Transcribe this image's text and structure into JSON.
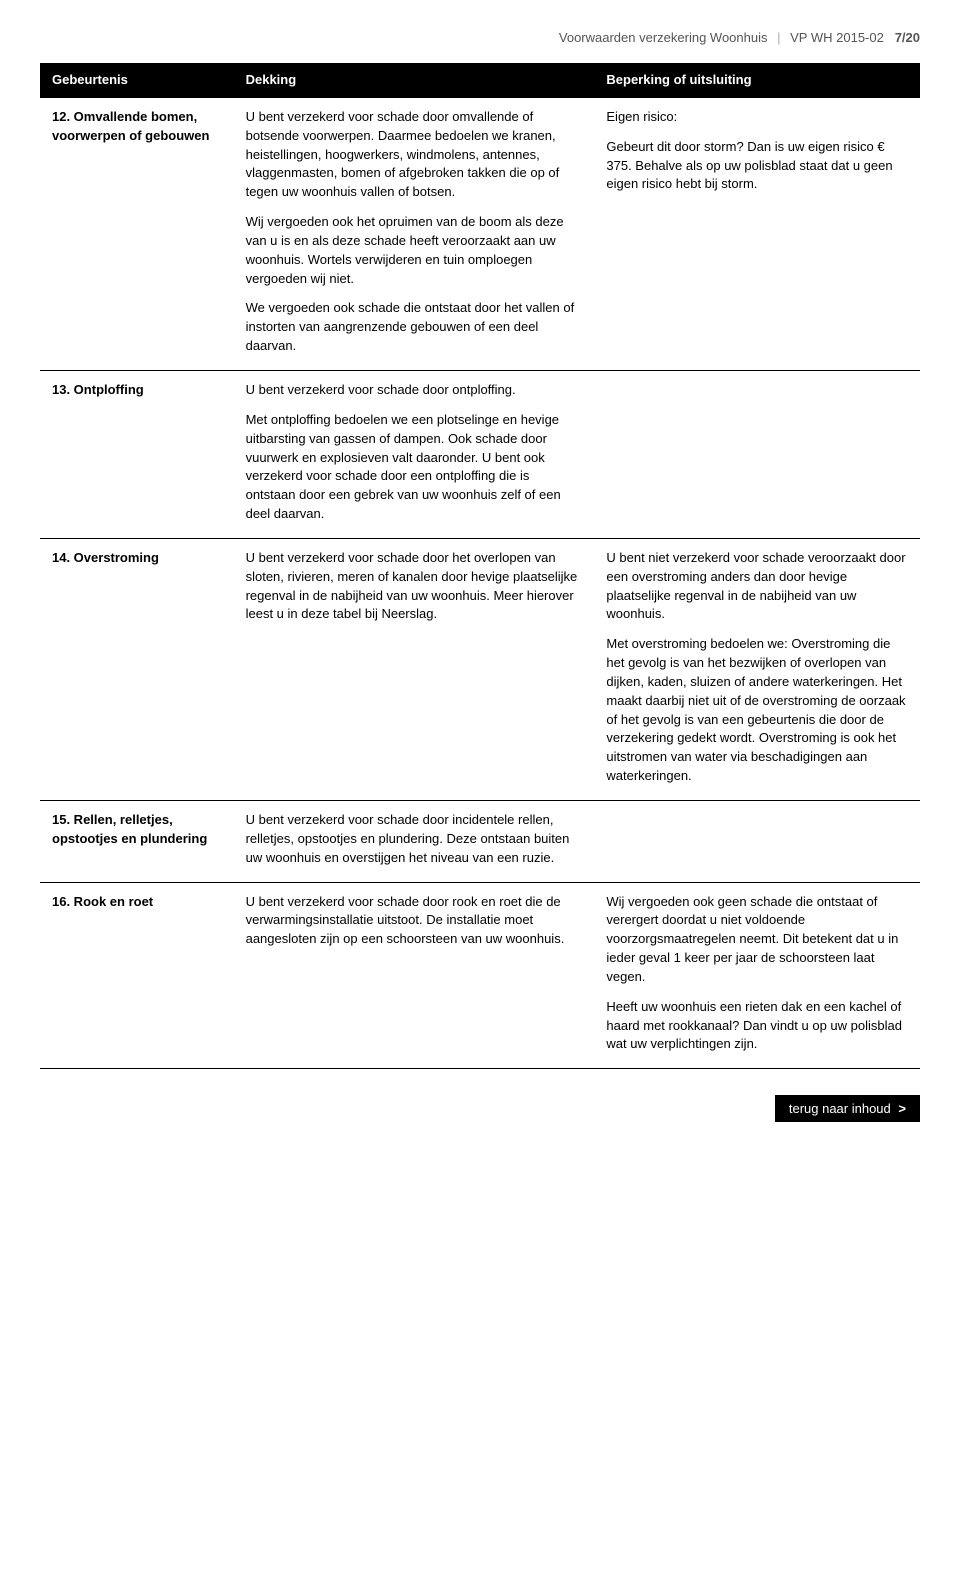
{
  "header": {
    "title": "Voorwaarden verzekering Woonhuis",
    "code": "VP WH 2015-02",
    "page": "7/20"
  },
  "columns": {
    "event": "Gebeurtenis",
    "coverage": "Dekking",
    "limitation": "Beperking of uitsluiting"
  },
  "rows": [
    {
      "event": "12. Omvallende bomen, voorwerpen of gebouwen",
      "coverage": [
        "U bent verzekerd voor schade door omvallende of botsende voorwerpen. Daarmee bedoelen we kranen, heistellingen, hoogwerkers, windmolens, antennes, vlaggenmasten, bomen of afgebroken takken die op of tegen uw woonhuis vallen of botsen.",
        "Wij vergoeden ook het opruimen van de boom als deze van u is en als deze schade heeft veroorzaakt aan uw woonhuis. Wortels verwijderen en tuin omploegen vergoeden wij niet.",
        "We vergoeden ook schade die ontstaat door het vallen of instorten van aangrenzende gebouwen of een deel daarvan."
      ],
      "limitation": [
        "Eigen risico:",
        "Gebeurt dit door storm? Dan is uw eigen risico € 375. Behalve als op uw polisblad staat dat u geen eigen risico hebt bij storm."
      ]
    },
    {
      "event": "13. Ontploffing",
      "coverage": [
        "U bent verzekerd voor schade door ontploffing.",
        "Met ontploffing bedoelen we een plotselinge en hevige uitbarsting van gassen of dampen. Ook schade door vuurwerk en explosieven valt daaronder. U bent ook verzekerd voor schade door een ontploffing die is ontstaan door een gebrek van uw woonhuis zelf of een deel daarvan."
      ],
      "limitation": []
    },
    {
      "event": "14. Overstroming",
      "coverage": [
        "U bent verzekerd voor schade door het overlopen van sloten, rivieren, meren of kanalen door hevige plaatselijke regenval in de nabijheid van uw woonhuis. Meer hierover leest u in deze tabel bij Neerslag."
      ],
      "limitation": [
        "U bent niet verzekerd voor schade veroorzaakt door een overstroming anders dan door hevige plaatselijke regenval in de nabijheid van uw woonhuis.",
        "Met overstroming bedoelen we: Overstroming die het gevolg is van het bezwijken of overlopen van dijken, kaden, sluizen of andere waterkeringen. Het maakt daarbij niet uit of de overstroming de oorzaak of het gevolg is van een gebeurtenis die door de verzekering gedekt wordt. Overstroming is ook het uitstromen van water via beschadigingen aan waterkeringen."
      ]
    },
    {
      "event": "15. Rellen, relletjes, opstootjes en plundering",
      "coverage": [
        "U bent verzekerd voor schade door incidentele rellen, relletjes, opstootjes en plundering. Deze ontstaan buiten uw woonhuis en overstijgen het niveau van een ruzie."
      ],
      "limitation": []
    },
    {
      "event": "16. Rook en roet",
      "coverage": [
        "U bent verzekerd voor schade door rook en roet die de verwarmingsinstallatie uitstoot. De installatie moet aangesloten zijn op een schoorsteen van uw woonhuis."
      ],
      "limitation": [
        "Wij vergoeden ook geen schade die  ontstaat of verergert doordat u niet voldoende voorzorgsmaatregelen neemt. Dit betekent dat u in ieder geval 1 keer per jaar de schoorsteen laat vegen.",
        "Heeft uw woonhuis een rieten dak en een kachel of haard met rookkanaal? Dan vindt u op uw polisblad wat uw verplichtingen zijn."
      ]
    }
  ],
  "footer": {
    "link_label": "terug naar inhoud",
    "chevron": ">"
  }
}
